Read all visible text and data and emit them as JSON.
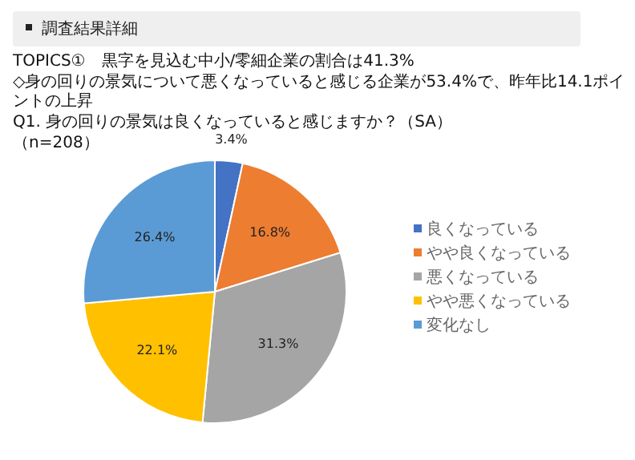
{
  "chart_data": {
    "type": "pie",
    "title": "TOPICS①　黒字を見込む中小/零細企業の割合は41.3%",
    "subtitle": "◇身の回りの景気について悪くなっていると感じる企業が53.4%で、昨年比14.1ポイントの上昇",
    "annotations": [
      "調査結果詳細",
      "Q1. 身の回りの景気は良くなっていると感じますか？（SA）",
      "（n=208）"
    ],
    "categories": [
      "良くなっている",
      "やや良くなっている",
      "悪くなっている",
      "やや悪くなっている",
      "変化なし"
    ],
    "values": [
      3.4,
      16.8,
      31.3,
      22.1,
      26.4
    ],
    "colors": [
      "#4472c4",
      "#ed7d31",
      "#a5a5a5",
      "#ffc000",
      "#5b9bd5"
    ],
    "value_labels": [
      "3.4%",
      "16.8%",
      "31.3%",
      "22.1%",
      "26.4%"
    ],
    "legend": "right"
  }
}
